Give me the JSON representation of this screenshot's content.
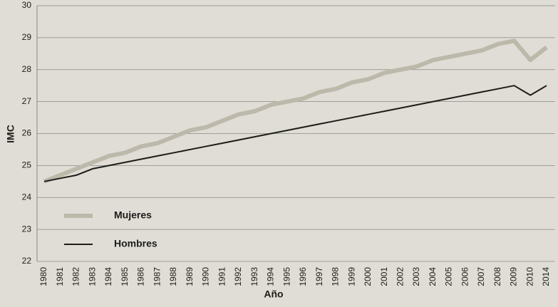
{
  "chart_data": {
    "type": "line",
    "x_label": "Año",
    "y_label": "IMC",
    "categories": [
      "1980",
      "1981",
      "1982",
      "1983",
      "1984",
      "1985",
      "1986",
      "1987",
      "1988",
      "1989",
      "1990",
      "1991",
      "1992",
      "1993",
      "1994",
      "1995",
      "1996",
      "1997",
      "1998",
      "1999",
      "2000",
      "2001",
      "2002",
      "2003",
      "2004",
      "2005",
      "2006",
      "2007",
      "2008",
      "2009",
      "2010",
      "2014"
    ],
    "series": [
      {
        "name": "Mujeres",
        "color": "#bdb9aa",
        "values": [
          24.5,
          24.7,
          24.9,
          25.1,
          25.3,
          25.4,
          25.6,
          25.7,
          25.9,
          26.1,
          26.2,
          26.4,
          26.6,
          26.7,
          26.9,
          27.0,
          27.1,
          27.3,
          27.4,
          27.6,
          27.7,
          27.9,
          28.0,
          28.1,
          28.3,
          28.4,
          28.5,
          28.6,
          28.8,
          28.9,
          28.3,
          28.7
        ]
      },
      {
        "name": "Hombres",
        "color": "#1c1c1a",
        "values": [
          24.5,
          24.6,
          24.7,
          24.9,
          25.0,
          25.1,
          25.2,
          25.3,
          25.4,
          25.5,
          25.6,
          25.7,
          25.8,
          25.9,
          26.0,
          26.1,
          26.2,
          26.3,
          26.4,
          26.5,
          26.6,
          26.7,
          26.8,
          26.9,
          27.0,
          27.1,
          27.2,
          27.3,
          27.4,
          27.5,
          27.2,
          27.5
        ]
      }
    ],
    "ylim": [
      22,
      30
    ],
    "yticks": [
      22,
      23,
      24,
      25,
      26,
      27,
      28,
      29,
      30
    ],
    "grid": true,
    "legend": "lower left"
  }
}
